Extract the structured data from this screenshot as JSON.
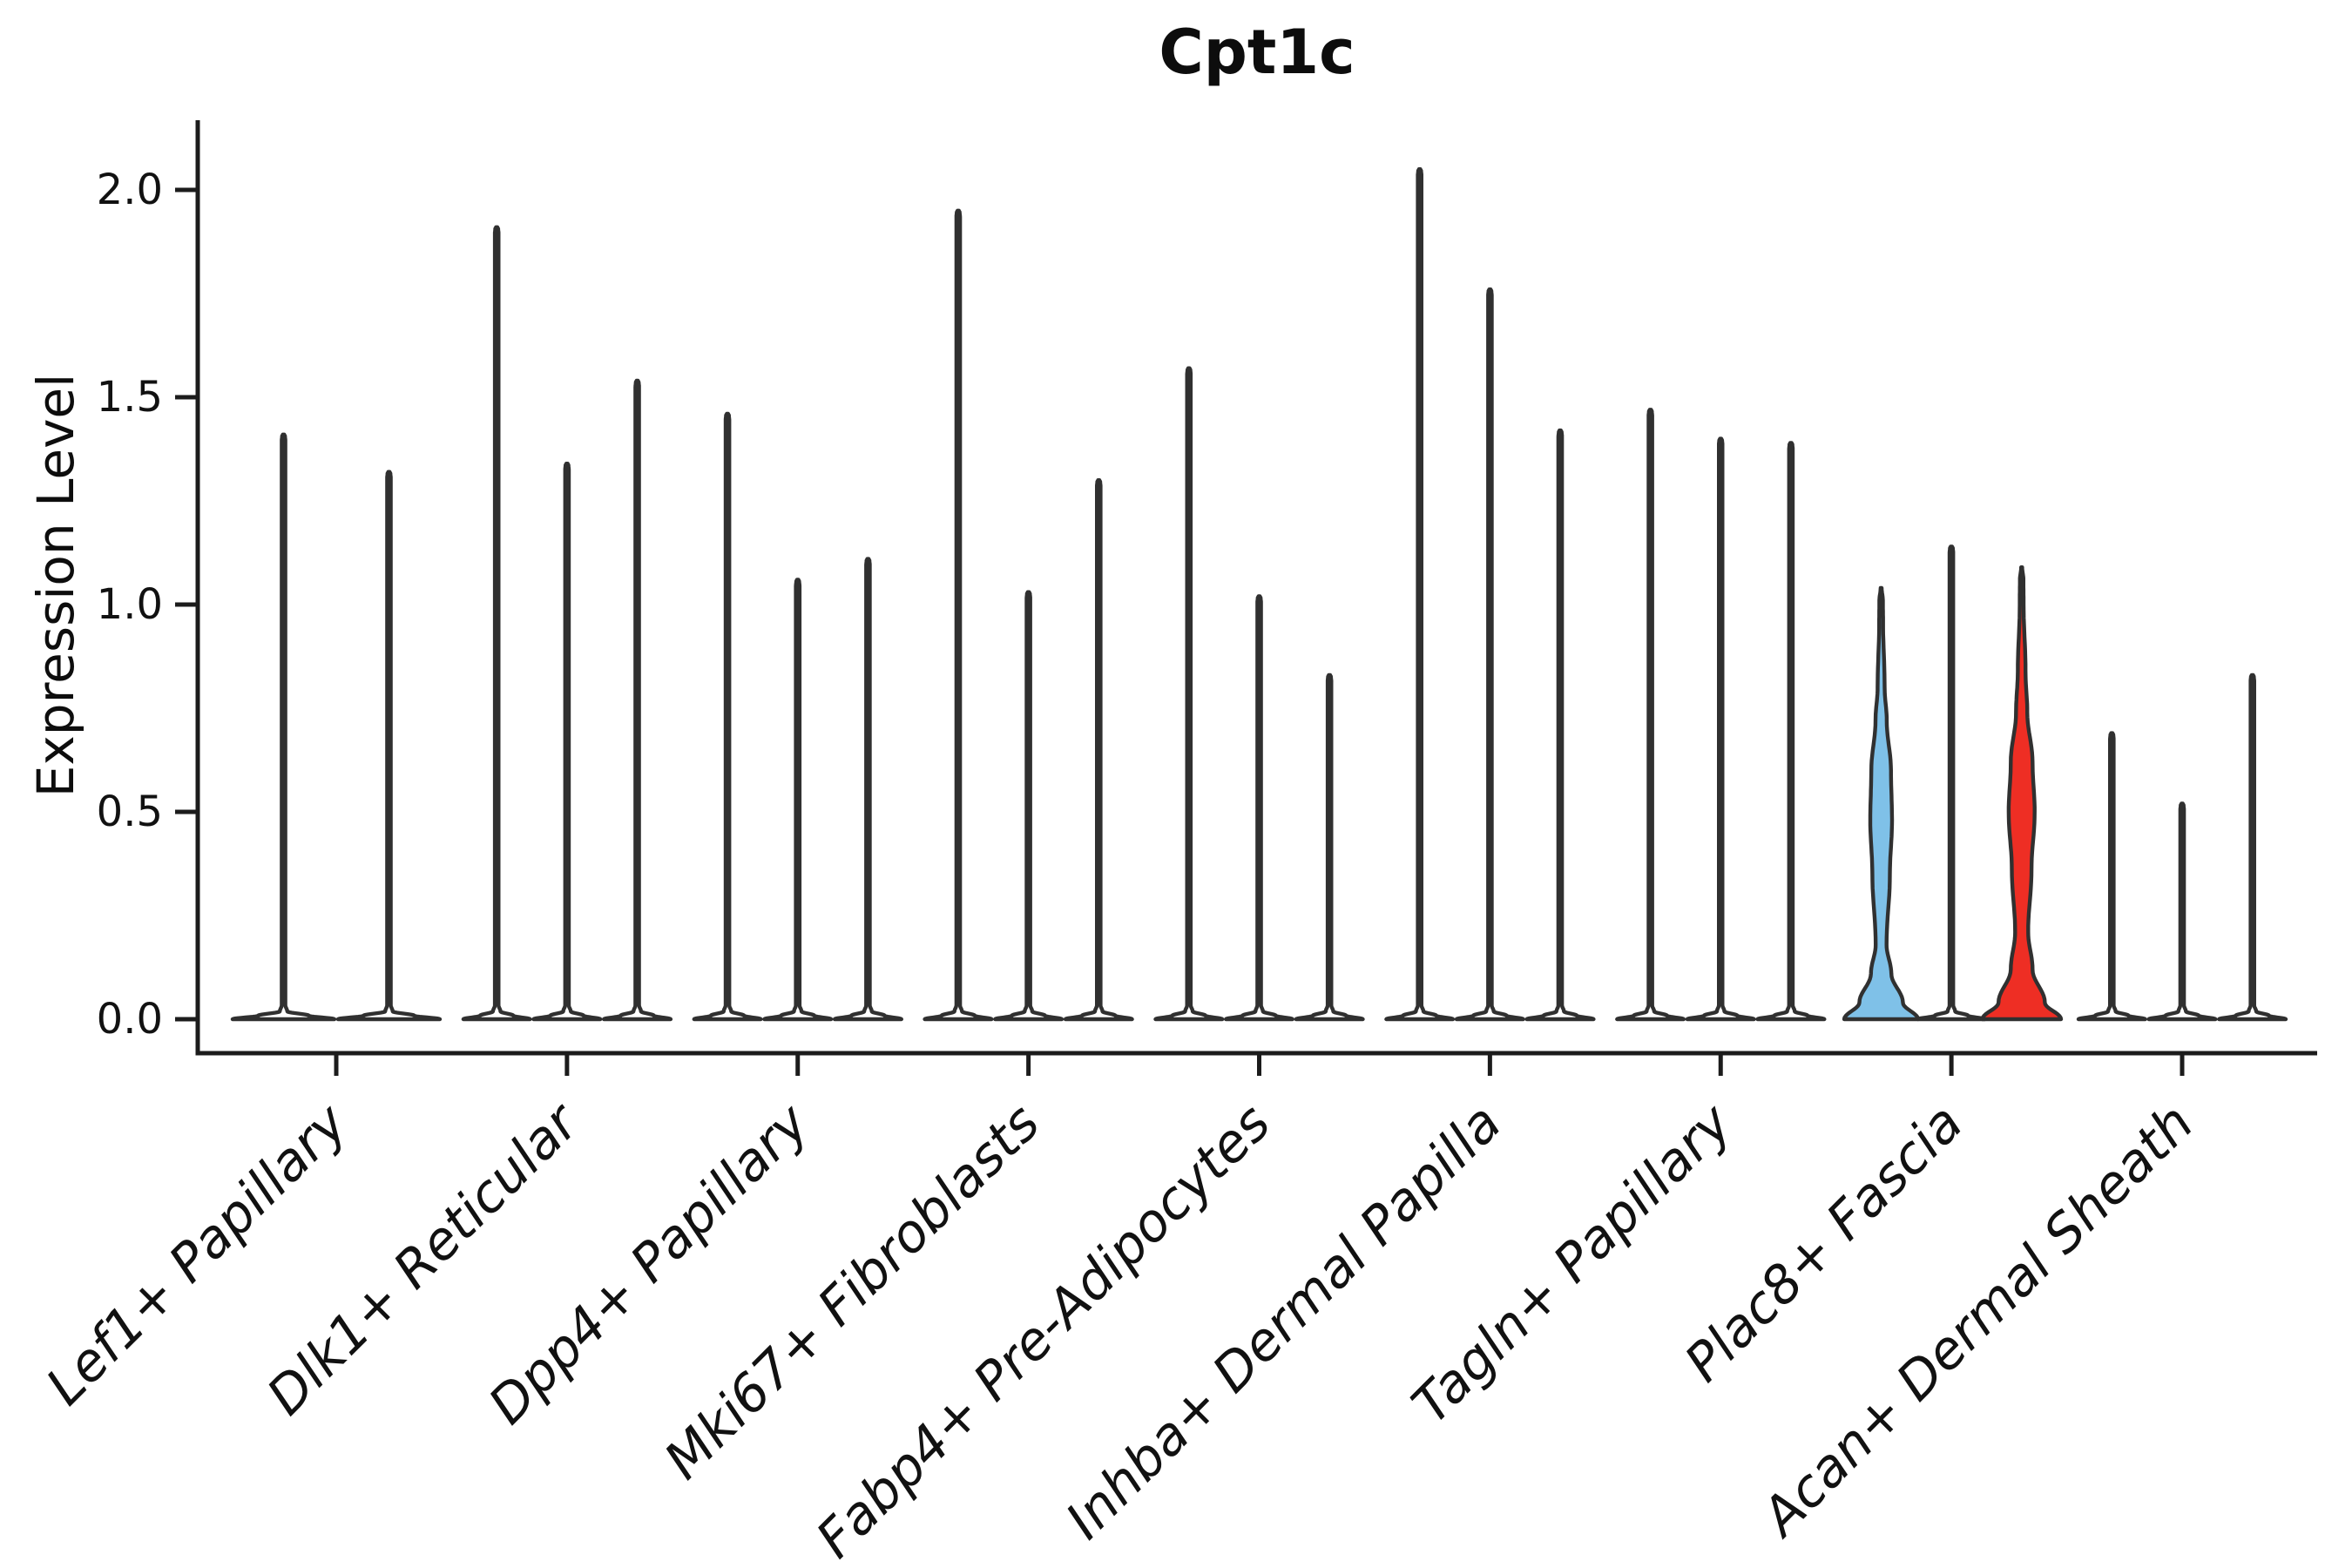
{
  "figure": {
    "title": "Cpt1c",
    "ylabel": "Expression Level"
  },
  "chart_data": {
    "type": "violin",
    "title": "Cpt1c",
    "xlabel": "",
    "ylabel": "Expression Level",
    "grid": false,
    "legend": "none",
    "ylim": [
      -0.08,
      2.16
    ],
    "yticks": [
      {
        "value": 0.0,
        "label": "0.0"
      },
      {
        "value": 0.5,
        "label": "0.5"
      },
      {
        "value": 1.0,
        "label": "1.0"
      },
      {
        "value": 1.5,
        "label": "1.5"
      },
      {
        "value": 2.0,
        "label": "2.0"
      }
    ],
    "style": {
      "outline_color": "#303030",
      "spine_color": "#1c1c1c",
      "text_color": "#111111",
      "default_fill": "#ffffff",
      "highlight_blue": "#7FC1E8",
      "highlight_red": "#EE2E24"
    },
    "categories": [
      "Lef1+ Papillary",
      "Dlk1+ Reticular",
      "Dpp4+ Papillary",
      "Mki67+ Fibroblasts",
      "Fabp4+ Pre-Adipocytes",
      "Inhba+ Dermal Papilla",
      "Tagln+ Papillary",
      "Plac8+ Fascia",
      "Acan+ Dermal Sheath"
    ],
    "groups": [
      {
        "label": "Lef1+ Papillary",
        "violins": [
          {
            "max": 1.41,
            "fill": "#ffffff",
            "shape": "spike"
          },
          {
            "max": 1.32,
            "fill": "#ffffff",
            "shape": "spike"
          }
        ]
      },
      {
        "label": "Dlk1+ Reticular",
        "violins": [
          {
            "max": 1.91,
            "fill": "#ffffff",
            "shape": "spike"
          },
          {
            "max": 1.34,
            "fill": "#ffffff",
            "shape": "spike"
          },
          {
            "max": 1.54,
            "fill": "#ffffff",
            "shape": "spike"
          }
        ]
      },
      {
        "label": "Dpp4+ Papillary",
        "violins": [
          {
            "max": 1.46,
            "fill": "#ffffff",
            "shape": "spike"
          },
          {
            "max": 1.06,
            "fill": "#ffffff",
            "shape": "spike"
          },
          {
            "max": 1.11,
            "fill": "#ffffff",
            "shape": "spike"
          }
        ]
      },
      {
        "label": "Mki67+ Fibroblasts",
        "violins": [
          {
            "max": 1.95,
            "fill": "#ffffff",
            "shape": "spike"
          },
          {
            "max": 1.03,
            "fill": "#ffffff",
            "shape": "spike"
          },
          {
            "max": 1.3,
            "fill": "#ffffff",
            "shape": "spike"
          }
        ]
      },
      {
        "label": "Fabp4+ Pre-Adipocytes",
        "violins": [
          {
            "max": 1.57,
            "fill": "#ffffff",
            "shape": "spike"
          },
          {
            "max": 1.02,
            "fill": "#ffffff",
            "shape": "spike"
          },
          {
            "max": 0.83,
            "fill": "#ffffff",
            "shape": "spike"
          }
        ]
      },
      {
        "label": "Inhba+ Dermal Papilla",
        "violins": [
          {
            "max": 2.05,
            "fill": "#ffffff",
            "shape": "spike"
          },
          {
            "max": 1.76,
            "fill": "#ffffff",
            "shape": "spike"
          },
          {
            "max": 1.42,
            "fill": "#ffffff",
            "shape": "spike"
          }
        ]
      },
      {
        "label": "Tagln+ Papillary",
        "violins": [
          {
            "max": 1.47,
            "fill": "#ffffff",
            "shape": "spike"
          },
          {
            "max": 1.4,
            "fill": "#ffffff",
            "shape": "spike"
          },
          {
            "max": 1.39,
            "fill": "#ffffff",
            "shape": "spike"
          }
        ]
      },
      {
        "label": "Plac8+ Fascia",
        "violins": [
          {
            "max": 1.04,
            "fill": "#7FC1E8",
            "shape": "bulged",
            "profile": [
              [
                0,
                1.05
              ],
              [
                0.04,
                0.62
              ],
              [
                0.11,
                0.29
              ],
              [
                0.18,
                0.155
              ],
              [
                0.35,
                0.25
              ],
              [
                0.48,
                0.31
              ],
              [
                0.6,
                0.28
              ],
              [
                0.72,
                0.16
              ],
              [
                0.8,
                0.1
              ],
              [
                0.96,
                0.055
              ],
              [
                1.01,
                0.05
              ],
              [
                1.04,
                0.012
              ]
            ]
          },
          {
            "max": 1.14,
            "fill": "#ffffff",
            "shape": "spike"
          },
          {
            "max": 1.09,
            "fill": "#EE2E24",
            "shape": "bulged",
            "profile": [
              [
                0,
                1.12
              ],
              [
                0.04,
                0.66
              ],
              [
                0.12,
                0.31
              ],
              [
                0.21,
                0.185
              ],
              [
                0.36,
                0.28
              ],
              [
                0.5,
                0.37
              ],
              [
                0.62,
                0.31
              ],
              [
                0.74,
                0.16
              ],
              [
                0.84,
                0.11
              ],
              [
                1.0,
                0.055
              ],
              [
                1.06,
                0.05
              ],
              [
                1.09,
                0.012
              ]
            ]
          }
        ]
      },
      {
        "label": "Acan+ Dermal Sheath",
        "violins": [
          {
            "max": 0.69,
            "fill": "#ffffff",
            "shape": "spike"
          },
          {
            "max": 0.52,
            "fill": "#ffffff",
            "shape": "spike"
          },
          {
            "max": 0.83,
            "fill": "#ffffff",
            "shape": "spike"
          }
        ]
      }
    ]
  }
}
